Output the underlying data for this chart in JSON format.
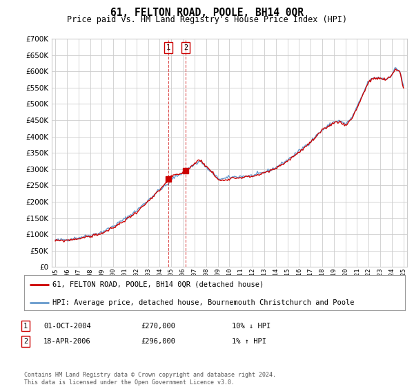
{
  "title": "61, FELTON ROAD, POOLE, BH14 0QR",
  "subtitle": "Price paid vs. HM Land Registry's House Price Index (HPI)",
  "legend_line1": "61, FELTON ROAD, POOLE, BH14 0QR (detached house)",
  "legend_line2": "HPI: Average price, detached house, Bournemouth Christchurch and Poole",
  "transaction1_date": "01-OCT-2004",
  "transaction1_price": "£270,000",
  "transaction1_hpi": "10% ↓ HPI",
  "transaction2_date": "18-APR-2006",
  "transaction2_price": "£296,000",
  "transaction2_hpi": "1% ↑ HPI",
  "footer": "Contains HM Land Registry data © Crown copyright and database right 2024.\nThis data is licensed under the Open Government Licence v3.0.",
  "hpi_color": "#6699cc",
  "price_color": "#cc0000",
  "background_color": "#ffffff",
  "grid_color": "#cccccc",
  "ylim_min": 0,
  "ylim_max": 700000,
  "x_start_year": 1995,
  "x_end_year": 2025
}
